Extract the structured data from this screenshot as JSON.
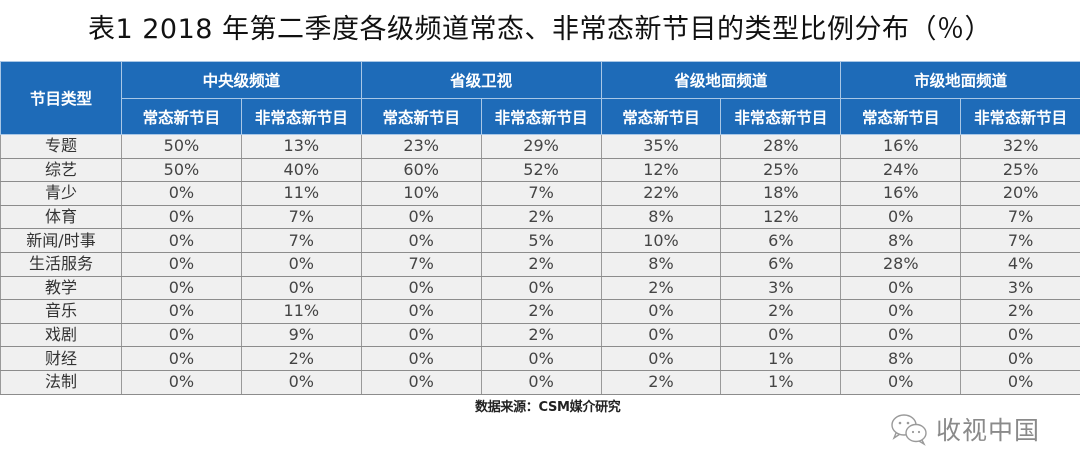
{
  "title": "表1 2018 年第二季度各级频道常态、非常态新节目的类型比例分布（％）",
  "table": {
    "row_header": "节目类型",
    "groups": [
      {
        "label": "中央级频道",
        "sub": [
          "常态新节目",
          "非常态新节目"
        ]
      },
      {
        "label": "省级卫视",
        "sub": [
          "常态新节目",
          "非常态新节目"
        ]
      },
      {
        "label": "省级地面频道",
        "sub": [
          "常态新节目",
          "非常态新节目"
        ]
      },
      {
        "label": "市级地面频道",
        "sub": [
          "常态新节目",
          "非常态新节目"
        ]
      }
    ],
    "rows": [
      {
        "label": "专题",
        "values": [
          "50%",
          "13%",
          "23%",
          "29%",
          "35%",
          "28%",
          "16%",
          "32%"
        ]
      },
      {
        "label": "综艺",
        "values": [
          "50%",
          "40%",
          "60%",
          "52%",
          "12%",
          "25%",
          "24%",
          "25%"
        ]
      },
      {
        "label": "青少",
        "values": [
          "0%",
          "11%",
          "10%",
          "7%",
          "22%",
          "18%",
          "16%",
          "20%"
        ]
      },
      {
        "label": "体育",
        "values": [
          "0%",
          "7%",
          "0%",
          "2%",
          "8%",
          "12%",
          "0%",
          "7%"
        ]
      },
      {
        "label": "新闻/时事",
        "values": [
          "0%",
          "7%",
          "0%",
          "5%",
          "10%",
          "6%",
          "8%",
          "7%"
        ]
      },
      {
        "label": "生活服务",
        "values": [
          "0%",
          "0%",
          "7%",
          "2%",
          "8%",
          "6%",
          "28%",
          "4%"
        ]
      },
      {
        "label": "教学",
        "values": [
          "0%",
          "0%",
          "0%",
          "0%",
          "2%",
          "3%",
          "0%",
          "3%"
        ]
      },
      {
        "label": "音乐",
        "values": [
          "0%",
          "11%",
          "0%",
          "2%",
          "0%",
          "2%",
          "0%",
          "2%"
        ]
      },
      {
        "label": "戏剧",
        "values": [
          "0%",
          "9%",
          "0%",
          "2%",
          "0%",
          "0%",
          "0%",
          "0%"
        ]
      },
      {
        "label": "财经",
        "values": [
          "0%",
          "2%",
          "0%",
          "0%",
          "0%",
          "1%",
          "8%",
          "0%"
        ]
      },
      {
        "label": "法制",
        "values": [
          "0%",
          "0%",
          "0%",
          "0%",
          "2%",
          "1%",
          "0%",
          "0%"
        ]
      }
    ]
  },
  "source": "数据来源：CSM媒介研究",
  "watermark": {
    "icon": "wechat-icon",
    "text": "收视中国"
  },
  "colors": {
    "header_bg": "#1e6bb8",
    "header_text": "#ffffff",
    "cell_bg": "#f0f0f0"
  }
}
